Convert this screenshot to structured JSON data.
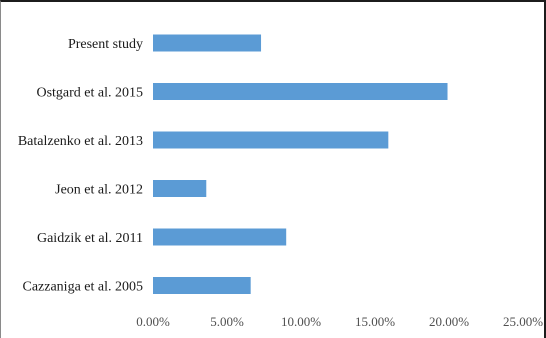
{
  "chart_data": {
    "type": "bar",
    "orientation": "horizontal",
    "title": "",
    "xlabel": "",
    "ylabel": "",
    "categories": [
      "Present study",
      "Ostgard et al. 2015",
      "Batalzenko et al. 2013",
      "Jeon et al. 2012",
      "Gaidzik et al. 2011",
      "Cazzaniga et al. 2005"
    ],
    "values": [
      7.3,
      19.9,
      15.9,
      3.6,
      9.0,
      6.6
    ],
    "xlim": [
      0,
      25
    ],
    "xticks": [
      0,
      5,
      10,
      15,
      20,
      25
    ],
    "xtick_labels": [
      "0.00%",
      "5.00%",
      "10.00%",
      "15.00%",
      "20.00%",
      "25.00%"
    ],
    "grid": false,
    "legend": "none",
    "bar_color": "#5b9bd5"
  }
}
